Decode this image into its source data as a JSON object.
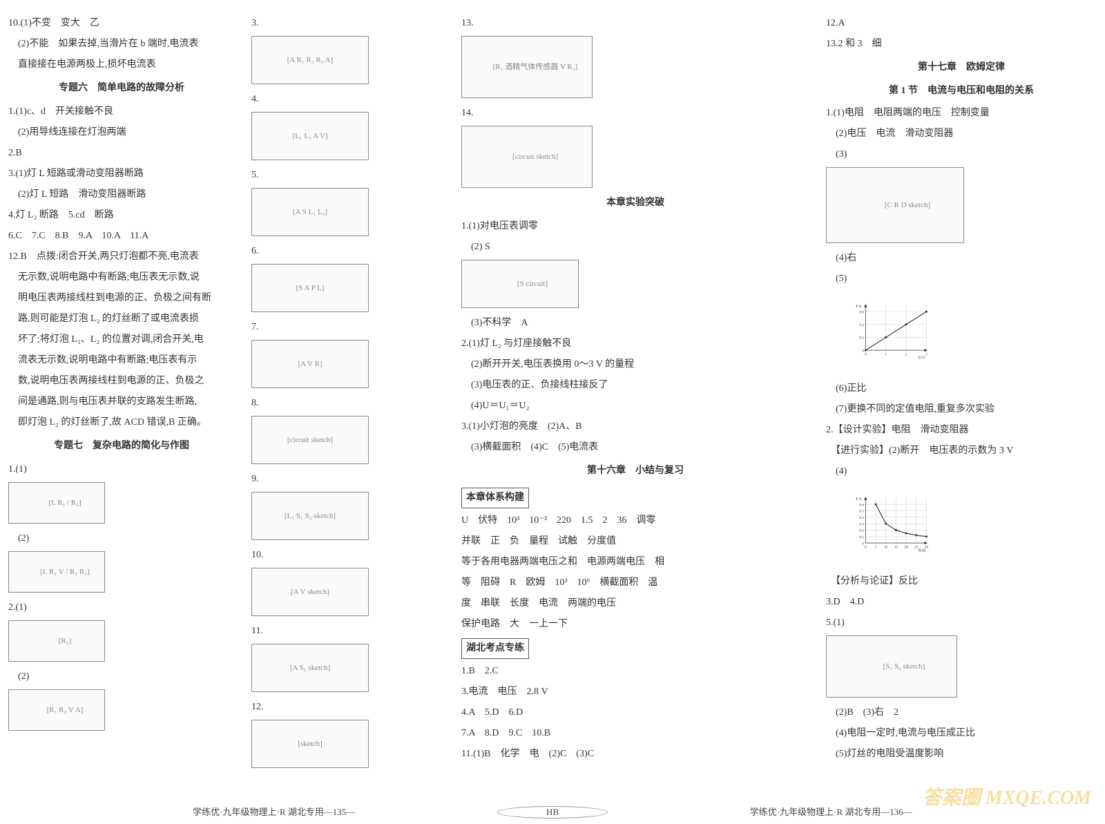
{
  "col1": {
    "q10_1": "10.(1)不变　变大　乙",
    "q10_2a": "　(2)不能　如果去掉,当滑片在 b 端时,电流表",
    "q10_2b": "　直接接在电源两极上,损坏电流表",
    "topic6": "专题六　简单电路的故障分析",
    "t6_q1_1": "1.(1)c、d　开关接触不良",
    "t6_q1_2": "　(2)用导线连接在灯泡两端",
    "t6_q2": "2.B",
    "t6_q3_1": "3.(1)灯 L 短路或滑动变阻器断路",
    "t6_q3_2": "　(2)灯 L 短路　滑动变阻器断路",
    "t6_q4": "4.灯 L₂ 断路　5.cd　断路",
    "t6_q6": "6.C　7.C　8.B　9.A　10.A　11.A",
    "t6_q12a": "12.B　点拨:闭合开关,两只灯泡都不亮,电流表",
    "t6_q12b": "　无示数,说明电路中有断路;电压表无示数,说",
    "t6_q12c": "　明电压表两接线柱到电源的正、负极之间有断",
    "t6_q12d": "　路,则可能是灯泡 L₂ 的灯丝断了或电流表损",
    "t6_q12e": "　坏了;将灯泡 L₁、L₂ 的位置对调,闭合开关,电",
    "t6_q12f": "　流表无示数,说明电路中有断路;电压表有示",
    "t6_q12g": "　数,说明电压表两接线柱到电源的正、负极之",
    "t6_q12h": "　间是通路,则与电压表并联的支路发生断路,",
    "t6_q12i": "　即灯泡 L₂ 的灯丝断了,故 ACD 错误,B 正确。",
    "topic7": "专题七　复杂电路的简化与作图",
    "t7_q1_1": "1.(1)",
    "t7_q1_2": "　(2)",
    "t7_q2_1": "2.(1)",
    "t7_q2_2": "　(2)",
    "diagram_labels": {
      "d1": "[L R₁ / R₂]",
      "d2": "[L R₁ V / R₂ R₃]",
      "d3": "[R₁]",
      "d4": "[R₁ R₂ V A]"
    }
  },
  "col2": {
    "items": [
      {
        "n": "3.",
        "dl": "[A R₁ R₂ R₃ A]"
      },
      {
        "n": "4.",
        "dl": "[L₁ L₂ A V]"
      },
      {
        "n": "5.",
        "dl": "[A S L₁ L₂]"
      },
      {
        "n": "6.",
        "dl": "[S A P L]"
      },
      {
        "n": "7.",
        "dl": "[A V R]"
      },
      {
        "n": "8.",
        "dl": "[circuit sketch]"
      },
      {
        "n": "9.",
        "dl": "[L₁ S₁ S₂ sketch]"
      },
      {
        "n": "10.",
        "dl": "[A V sketch]"
      },
      {
        "n": "11.",
        "dl": "[A S₁ sketch]"
      },
      {
        "n": "12.",
        "dl": "[sketch]"
      }
    ]
  },
  "col3": {
    "q13": "13.",
    "q13_dl": "[R₁ 酒精气体传感器 V R₂]",
    "q14": "14.",
    "q14_dl": "[circuit sketch]",
    "exp_title": "本章实验突破",
    "e1_1": "1.(1)对电压表调零",
    "e1_2": "　(2) S",
    "e1_2_dl": "[S circuit]",
    "e1_3": "　(3)不科学　A",
    "e2_1": "2.(1)灯 L₂ 与灯座接触不良",
    "e2_2": "　(2)断开开关,电压表换用 0～3 V 的量程",
    "e2_3": "　(3)电压表的正、负接线柱接反了",
    "e2_4": "　(4)U＝U₁＝U₂",
    "e3_1": "3.(1)小灯泡的亮度　(2)A、B",
    "e3_2": "　(3)横截面积　(4)C　(5)电流表",
    "ch16_title": "第十六章　小结与复习",
    "box1": "本章体系构建",
    "s1": "U　伏特　10³　10⁻³　220　1.5　2　36　调零",
    "s2": "并联　正　负　量程　试触　分度值",
    "s3": "等于各用电器两端电压之和　电源两端电压　相",
    "s4": "等　阻碍　R　欧姆　10³　10⁶　横截面积　温",
    "s5": "度　串联　长度　电流　两端的电压",
    "s6": "保护电路　大　一上一下",
    "box2": "湖北考点专练",
    "h1": "1.B　2.C",
    "h3": "3.电流　电压　2.8 V",
    "h4": "4.A　5.D　6.D",
    "h7": "7.A　8.D　9.C　10.B",
    "h11": "11.(1)B　化学　电　(2)C　(3)C"
  },
  "col4": {
    "q12": "12.A",
    "q13": "13.2 和 3　细",
    "ch17_title": "第十七章　欧姆定律",
    "sec1_title": "第 1 节　电流与电压和电阻的关系",
    "s1_q1_1": "1.(1)电阻　电阻两端的电压　控制变量",
    "s1_q1_2": "　(2)电压　电流　滑动变阻器",
    "s1_q1_3": "　(3)",
    "s1_q1_3_dl": "[C R D sketch]",
    "s1_q1_4": "　(4)右",
    "s1_q1_5": "　(5)",
    "s1_q1_6": "　(6)正比",
    "s1_q1_7": "　(7)更换不同的定值电阻,重复多次实验",
    "s1_q2_1": "2.【设计实验】电阻　滑动变阻器",
    "s1_q2_2": "　【进行实验】(2)断开　电压表的示数为 3 V",
    "s1_q2_4": "　(4)",
    "s1_q2_anal": "　【分析与论证】反比",
    "s1_q3": "3.D　4.D",
    "s1_q5_1": "5.(1)",
    "s1_q5_1_dl": "[S₁ S₂ sketch]",
    "s1_q5_2": "　(2)B　(3)右　2",
    "s1_q5_4": "　(4)电阻一定时,电流与电压成正比",
    "s1_q5_5": "　(5)灯丝的电阻受温度影响",
    "chart5": {
      "type": "line",
      "xlabel": "U/V",
      "ylabel": "I/A",
      "xlim": [
        0,
        3.0
      ],
      "ylim": [
        0,
        0.7
      ],
      "xticks": [
        0,
        1.0,
        2.0,
        3.0
      ],
      "yticks": [
        0,
        0.2,
        0.4,
        0.6
      ],
      "points_x": [
        0,
        1.0,
        2.0,
        3.0
      ],
      "points_y": [
        0,
        0.2,
        0.4,
        0.6
      ],
      "line_color": "#333333",
      "grid_color": "#bbbbbb",
      "bg_color": "#ffffff"
    },
    "chart4": {
      "type": "line",
      "xlabel": "R/Ω",
      "ylabel": "I/A",
      "xlim": [
        0,
        30
      ],
      "ylim": [
        0,
        0.7
      ],
      "xticks": [
        0,
        5,
        10,
        15,
        20,
        25,
        30
      ],
      "yticks": [
        0,
        0.1,
        0.2,
        0.3,
        0.4,
        0.5,
        0.6
      ],
      "points_x": [
        5,
        10,
        15,
        20,
        25,
        30
      ],
      "points_y": [
        0.6,
        0.3,
        0.2,
        0.15,
        0.12,
        0.1
      ],
      "line_color": "#333333",
      "grid_color": "#bbbbbb",
      "bg_color": "#ffffff"
    }
  },
  "footer": {
    "left": "学练优·九年级物理上·R 湖北专用—135—",
    "mid": "HB",
    "right": "学练优·九年级物理上·R 湖北专用—136—"
  },
  "watermark": "答案圈  MXQE.COM"
}
